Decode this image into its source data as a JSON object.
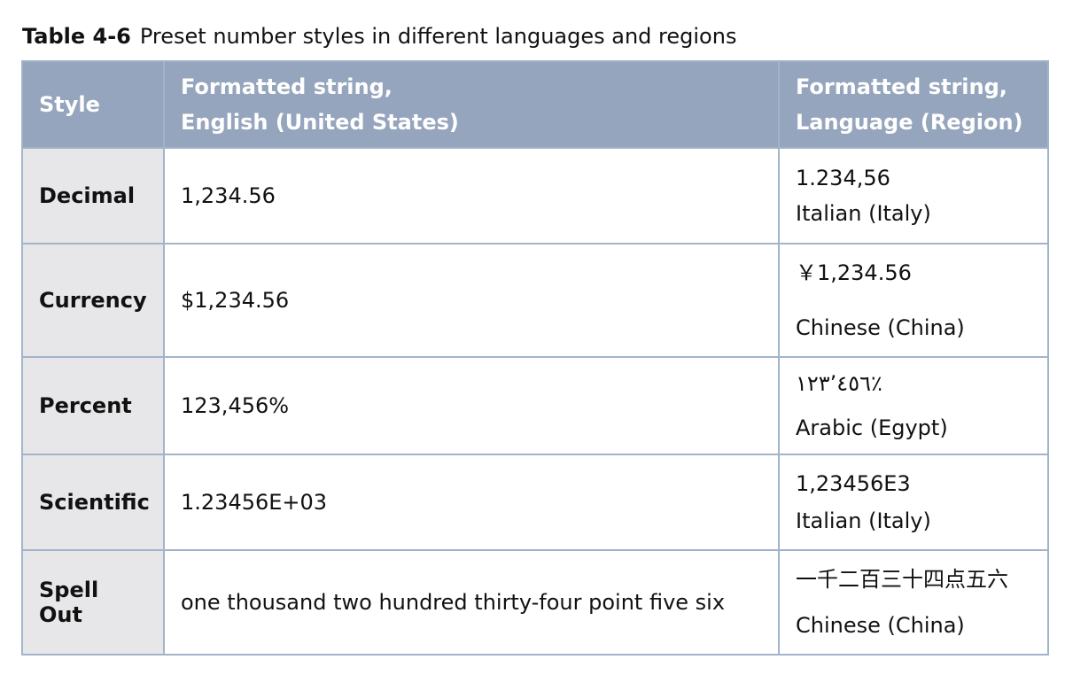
{
  "caption": {
    "number": "Table 4-6",
    "title": "Preset number styles in different languages and regions"
  },
  "header": {
    "style": "Style",
    "us_line1": "Formatted string,",
    "us_line2": "English (United States)",
    "region_line1": "Formatted string,",
    "region_line2": "Language (Region)"
  },
  "rows": [
    {
      "style": "Decimal",
      "us": "1,234.56",
      "local_value": "1.234,56",
      "local_locale": "Italian (Italy)"
    },
    {
      "style": "Currency",
      "us": "$1,234.56",
      "local_value": "￥1,234.56",
      "local_locale": "Chinese (China)"
    },
    {
      "style": "Percent",
      "us": "123,456%",
      "local_value": "٪١٢٣٬٤٥٦",
      "local_locale": "Arabic (Egypt)"
    },
    {
      "style": "Scientific",
      "us": "1.23456E+03",
      "local_value": "1,23456E3",
      "local_locale": "Italian (Italy)"
    },
    {
      "style": "Spell Out",
      "us": "one thousand two hundred thirty-four point five six",
      "local_value": "一千二百三十四点五六",
      "local_locale": "Chinese (China)"
    }
  ]
}
